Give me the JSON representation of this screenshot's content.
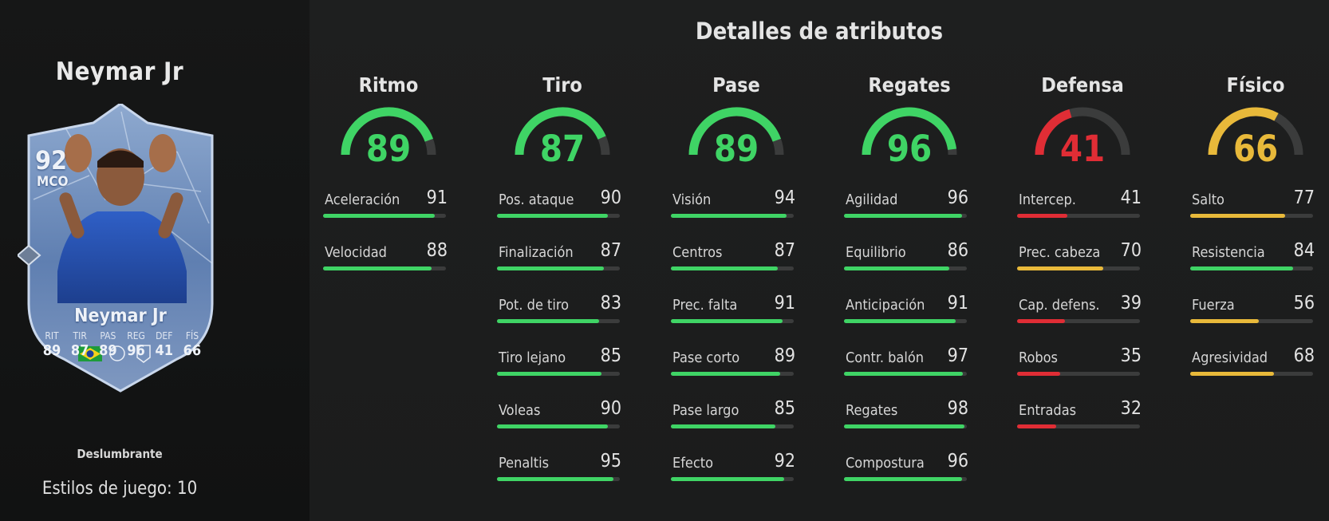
{
  "player": {
    "name": "Neymar Jr",
    "card_name": "Neymar Jr",
    "rating": "92",
    "position": "MCO",
    "card_stats": [
      {
        "label": "RIT",
        "value": "89"
      },
      {
        "label": "TIR",
        "value": "87"
      },
      {
        "label": "PAS",
        "value": "89"
      },
      {
        "label": "REG",
        "value": "96"
      },
      {
        "label": "DEF",
        "value": "41"
      },
      {
        "label": "FÍS",
        "value": "66"
      }
    ],
    "playstyle_plus": "Deslumbrante",
    "playstyles_count_label": "Estilos de juego: 10",
    "nation_icon": "brazil-flag-icon",
    "league_icon": "league-badge-icon",
    "club_icon": "club-badge-icon"
  },
  "details": {
    "title": "Detalles de atributos",
    "colors": {
      "green": "#3fd465",
      "yellow": "#e8b93a",
      "red": "#e02d35",
      "track": "#3b3c3c"
    },
    "categories": [
      {
        "name": "Ritmo",
        "value": 89,
        "attributes": [
          {
            "name": "Aceleración",
            "value": 91
          },
          {
            "name": "Velocidad",
            "value": 88
          }
        ]
      },
      {
        "name": "Tiro",
        "value": 87,
        "attributes": [
          {
            "name": "Pos. ataque",
            "value": 90
          },
          {
            "name": "Finalización",
            "value": 87
          },
          {
            "name": "Pot. de tiro",
            "value": 83
          },
          {
            "name": "Tiro lejano",
            "value": 85
          },
          {
            "name": "Voleas",
            "value": 90
          },
          {
            "name": "Penaltis",
            "value": 95
          }
        ]
      },
      {
        "name": "Pase",
        "value": 89,
        "attributes": [
          {
            "name": "Visión",
            "value": 94
          },
          {
            "name": "Centros",
            "value": 87
          },
          {
            "name": "Prec. falta",
            "value": 91
          },
          {
            "name": "Pase corto",
            "value": 89
          },
          {
            "name": "Pase largo",
            "value": 85
          },
          {
            "name": "Efecto",
            "value": 92
          }
        ]
      },
      {
        "name": "Regates",
        "value": 96,
        "attributes": [
          {
            "name": "Agilidad",
            "value": 96
          },
          {
            "name": "Equilibrio",
            "value": 86
          },
          {
            "name": "Anticipación",
            "value": 91
          },
          {
            "name": "Contr. balón",
            "value": 97
          },
          {
            "name": "Regates",
            "value": 98
          },
          {
            "name": "Compostura",
            "value": 96
          }
        ]
      },
      {
        "name": "Defensa",
        "value": 41,
        "attributes": [
          {
            "name": "Intercep.",
            "value": 41
          },
          {
            "name": "Prec. cabeza",
            "value": 70
          },
          {
            "name": "Cap. defens.",
            "value": 39
          },
          {
            "name": "Robos",
            "value": 35
          },
          {
            "name": "Entradas",
            "value": 32
          }
        ]
      },
      {
        "name": "Físico",
        "value": 66,
        "attributes": [
          {
            "name": "Salto",
            "value": 77
          },
          {
            "name": "Resistencia",
            "value": 84
          },
          {
            "name": "Fuerza",
            "value": 56
          },
          {
            "name": "Agresividad",
            "value": 68
          }
        ]
      }
    ]
  }
}
